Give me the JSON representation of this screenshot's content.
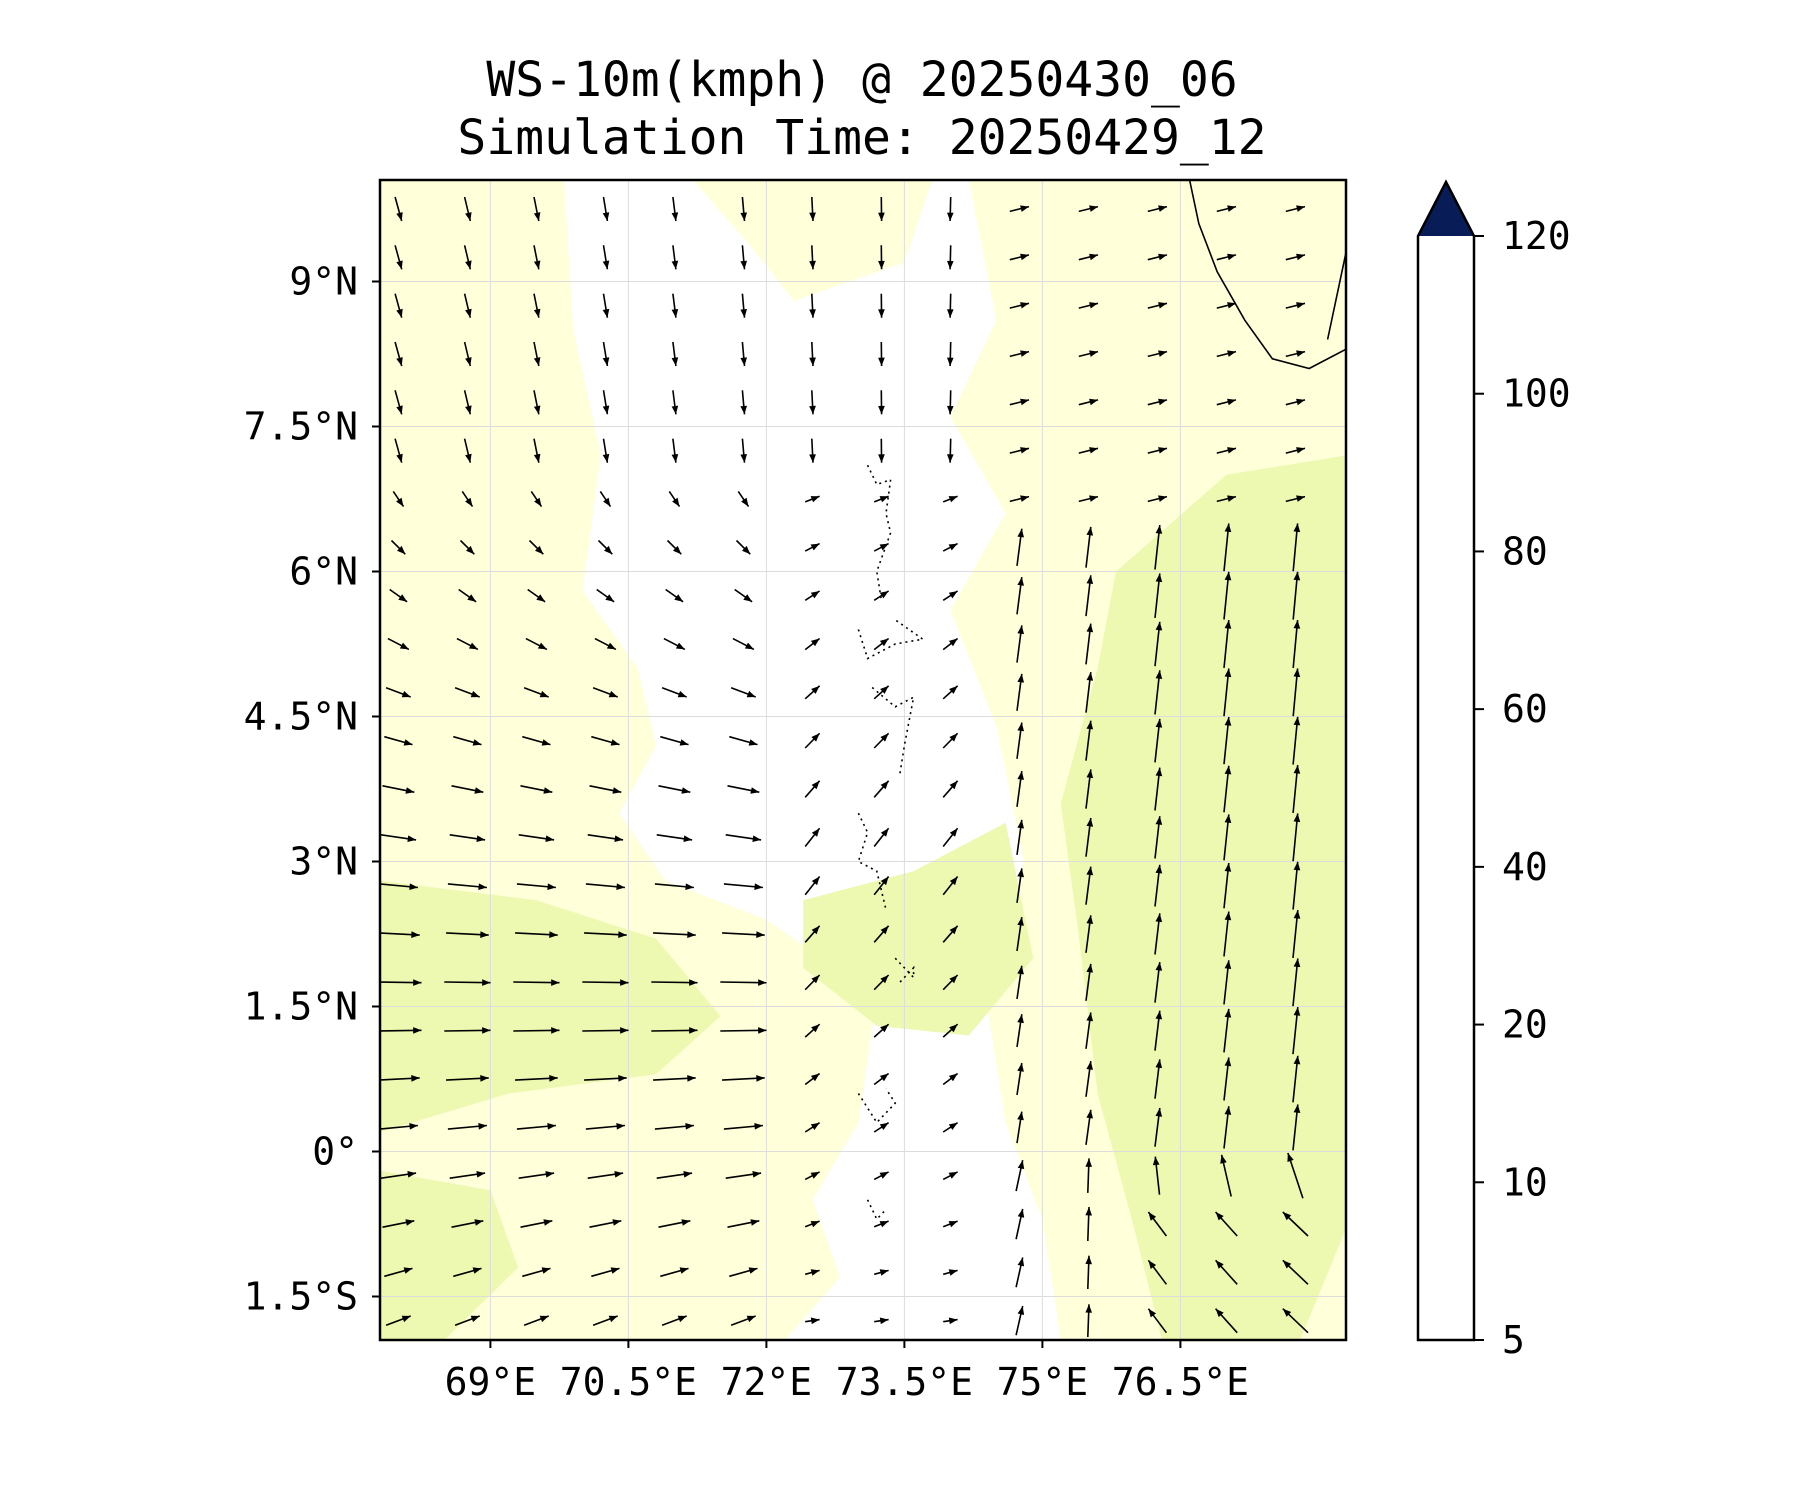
{
  "title_line1": "WS-10m(kmph) @ 20250430_06",
  "title_line2": "Simulation Time: 20250429_12",
  "map": {
    "lon_range": [
      67.8,
      78.3
    ],
    "lat_range": [
      -1.95,
      10.05
    ],
    "lon_ticks": [
      {
        "value": 69,
        "label": "69°E"
      },
      {
        "value": 70.5,
        "label": "70.5°E"
      },
      {
        "value": 72,
        "label": "72°E"
      },
      {
        "value": 73.5,
        "label": "73.5°E"
      },
      {
        "value": 75,
        "label": "75°E"
      },
      {
        "value": 76.5,
        "label": "76.5°E"
      }
    ],
    "lat_ticks": [
      {
        "value": 9,
        "label": "9°N"
      },
      {
        "value": 7.5,
        "label": "7.5°N"
      },
      {
        "value": 6,
        "label": "6°N"
      },
      {
        "value": 4.5,
        "label": "4.5°N"
      },
      {
        "value": 3,
        "label": "3°N"
      },
      {
        "value": 1.5,
        "label": "1.5°N"
      },
      {
        "value": 0,
        "label": "0°"
      },
      {
        "value": -1.5,
        "label": "1.5°S"
      }
    ],
    "gridlines": true,
    "colors": {
      "ws_5_10": "#ffffd9",
      "ws_10_20": "#edf8b1",
      "land_coast": "#000000",
      "white_below_5": "#ffffff"
    },
    "regions_5_10_kmph": [
      {
        "name": "west-band",
        "polygon": [
          [
            67.8,
            10.05
          ],
          [
            69.8,
            10.05
          ],
          [
            69.9,
            8.5
          ],
          [
            70.2,
            7.2
          ],
          [
            70.0,
            5.8
          ],
          [
            70.6,
            5.0
          ],
          [
            70.8,
            4.2
          ],
          [
            70.4,
            3.5
          ],
          [
            70.9,
            2.8
          ],
          [
            72.0,
            2.4
          ],
          [
            73.2,
            1.6
          ],
          [
            73.0,
            0.3
          ],
          [
            72.5,
            -0.5
          ],
          [
            72.8,
            -1.3
          ],
          [
            72.2,
            -1.95
          ],
          [
            67.8,
            -1.95
          ]
        ]
      },
      {
        "name": "east-band",
        "polygon": [
          [
            74.2,
            10.05
          ],
          [
            78.3,
            10.05
          ],
          [
            78.3,
            -1.95
          ],
          [
            75.2,
            -1.95
          ],
          [
            75.0,
            -0.7
          ],
          [
            74.6,
            0.3
          ],
          [
            74.4,
            1.5
          ],
          [
            74.8,
            3.0
          ],
          [
            74.5,
            4.4
          ],
          [
            74.0,
            5.6
          ],
          [
            74.6,
            6.6
          ],
          [
            74.0,
            7.6
          ],
          [
            74.5,
            8.6
          ]
        ]
      },
      {
        "name": "central-north",
        "polygon": [
          [
            71.2,
            10.05
          ],
          [
            73.8,
            10.05
          ],
          [
            73.5,
            9.2
          ],
          [
            72.3,
            8.8
          ],
          [
            71.8,
            9.4
          ]
        ]
      }
    ],
    "regions_10_20_kmph": [
      {
        "name": "west-strong",
        "polygon": [
          [
            67.8,
            2.8
          ],
          [
            69.5,
            2.6
          ],
          [
            70.8,
            2.2
          ],
          [
            71.5,
            1.4
          ],
          [
            70.8,
            0.8
          ],
          [
            69.2,
            0.6
          ],
          [
            67.8,
            0.2
          ]
        ]
      },
      {
        "name": "southwest-strong",
        "polygon": [
          [
            67.8,
            -0.2
          ],
          [
            69.0,
            -0.4
          ],
          [
            69.3,
            -1.2
          ],
          [
            68.5,
            -1.95
          ],
          [
            67.8,
            -1.95
          ]
        ]
      },
      {
        "name": "east-strong",
        "polygon": [
          [
            75.8,
            6.0
          ],
          [
            77.0,
            7.0
          ],
          [
            78.3,
            7.2
          ],
          [
            78.3,
            -0.8
          ],
          [
            77.8,
            -1.95
          ],
          [
            76.3,
            -1.95
          ],
          [
            76.0,
            -0.8
          ],
          [
            75.6,
            0.6
          ],
          [
            75.4,
            2.2
          ],
          [
            75.2,
            3.6
          ],
          [
            75.6,
            5.0
          ]
        ]
      },
      {
        "name": "mid-strong",
        "polygon": [
          [
            72.4,
            2.6
          ],
          [
            73.6,
            2.9
          ],
          [
            74.6,
            3.4
          ],
          [
            74.9,
            2.0
          ],
          [
            74.2,
            1.2
          ],
          [
            73.2,
            1.3
          ],
          [
            72.4,
            1.9
          ]
        ]
      }
    ],
    "coastline": [
      [
        76.6,
        10.05
      ],
      [
        76.7,
        9.6
      ],
      [
        76.9,
        9.1
      ],
      [
        77.2,
        8.6
      ],
      [
        77.5,
        8.2
      ],
      [
        77.9,
        8.1
      ],
      [
        78.3,
        8.3
      ]
    ],
    "coast_short_line": [
      [
        78.3,
        9.3
      ],
      [
        78.1,
        8.4
      ]
    ],
    "islands": [
      [
        [
          73.1,
          7.1
        ],
        [
          73.2,
          6.9
        ],
        [
          73.35,
          6.95
        ],
        [
          73.3,
          6.6
        ],
        [
          73.35,
          6.4
        ],
        [
          73.2,
          6.0
        ],
        [
          73.25,
          5.7
        ]
      ],
      [
        [
          73.0,
          5.4
        ],
        [
          73.1,
          5.1
        ],
        [
          73.4,
          5.25
        ],
        [
          73.7,
          5.3
        ],
        [
          73.4,
          5.5
        ]
      ],
      [
        [
          73.15,
          4.8
        ],
        [
          73.4,
          4.6
        ],
        [
          73.6,
          4.7
        ],
        [
          73.5,
          4.2
        ],
        [
          73.45,
          3.9
        ]
      ],
      [
        [
          73.0,
          3.5
        ],
        [
          73.1,
          3.3
        ],
        [
          73.0,
          3.0
        ],
        [
          73.2,
          2.9
        ],
        [
          73.3,
          2.5
        ]
      ],
      [
        [
          73.4,
          2.0
        ],
        [
          73.6,
          1.8
        ],
        [
          73.6,
          1.9
        ],
        [
          73.45,
          1.75
        ]
      ],
      [
        [
          73.0,
          0.6
        ],
        [
          73.2,
          0.3
        ],
        [
          73.4,
          0.5
        ],
        [
          73.3,
          0.65
        ]
      ],
      [
        [
          73.1,
          -0.5
        ],
        [
          73.2,
          -0.7
        ],
        [
          73.3,
          -0.6
        ]
      ]
    ],
    "wind_field": {
      "grid_step_lon": 0.75,
      "grid_step_lat": 0.5,
      "arrow_scale_note": "arrow length proportional to speed"
    }
  },
  "colorbar": {
    "levels": [
      5,
      10,
      20,
      40,
      60,
      80,
      100,
      120
    ],
    "colors": [
      "#ffffd9",
      "#edf8b1",
      "#c7e9b4",
      "#7fcdbb",
      "#41b6c4",
      "#1d91c0",
      "#225ea8",
      "#253494"
    ],
    "extend_color": "#081d58",
    "tick_labels": [
      "5",
      "10",
      "20",
      "40",
      "60",
      "80",
      "100",
      "120"
    ]
  }
}
